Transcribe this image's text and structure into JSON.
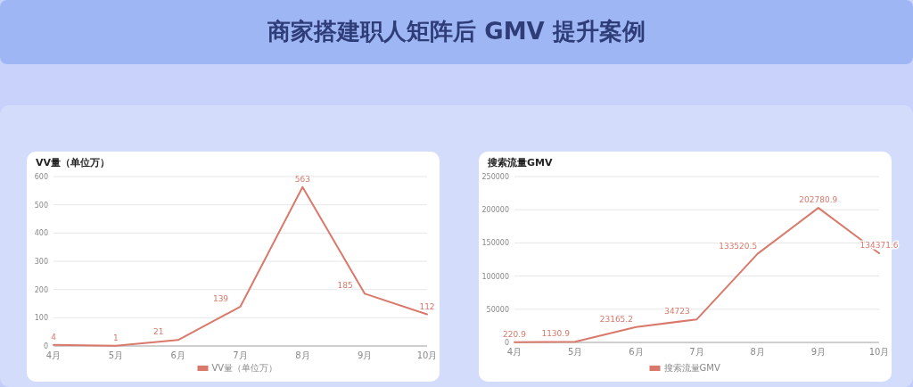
{
  "chart_data": [
    {
      "type": "line",
      "title": "商家搭建职人矩阵后 GMV 提升案例",
      "subtitle": "VV量（单位万）",
      "categories": [
        "4月",
        "5月",
        "6月",
        "7月",
        "8月",
        "9月",
        "10月"
      ],
      "series": [
        {
          "name": "VV量（单位万）",
          "color": "#d9796b",
          "values": [
            4,
            1,
            21,
            139,
            563,
            185,
            112
          ]
        }
      ],
      "ylim": [
        0,
        600
      ],
      "yticks": [
        0,
        100,
        200,
        300,
        400,
        500,
        600
      ],
      "grid": "y",
      "legend": "bottom",
      "marker": "none",
      "line_style": "solid",
      "data_labels": true
    },
    {
      "type": "line",
      "subtitle": "搜索流量GMV",
      "categories": [
        "4月",
        "5月",
        "6月",
        "7月",
        "8月",
        "9月",
        "10月"
      ],
      "series": [
        {
          "name": "搜索流量GMV",
          "color": "#d9796b",
          "values": [
            220.9,
            1130.9,
            23165.2,
            34723,
            133520.5,
            202780.9,
            134371.6
          ]
        }
      ],
      "ylim": [
        0,
        250000
      ],
      "yticks": [
        0,
        50000,
        100000,
        150000,
        200000,
        250000
      ],
      "grid": "y",
      "legend": "bottom",
      "marker": "none",
      "line_style": "solid",
      "data_labels": true
    }
  ]
}
